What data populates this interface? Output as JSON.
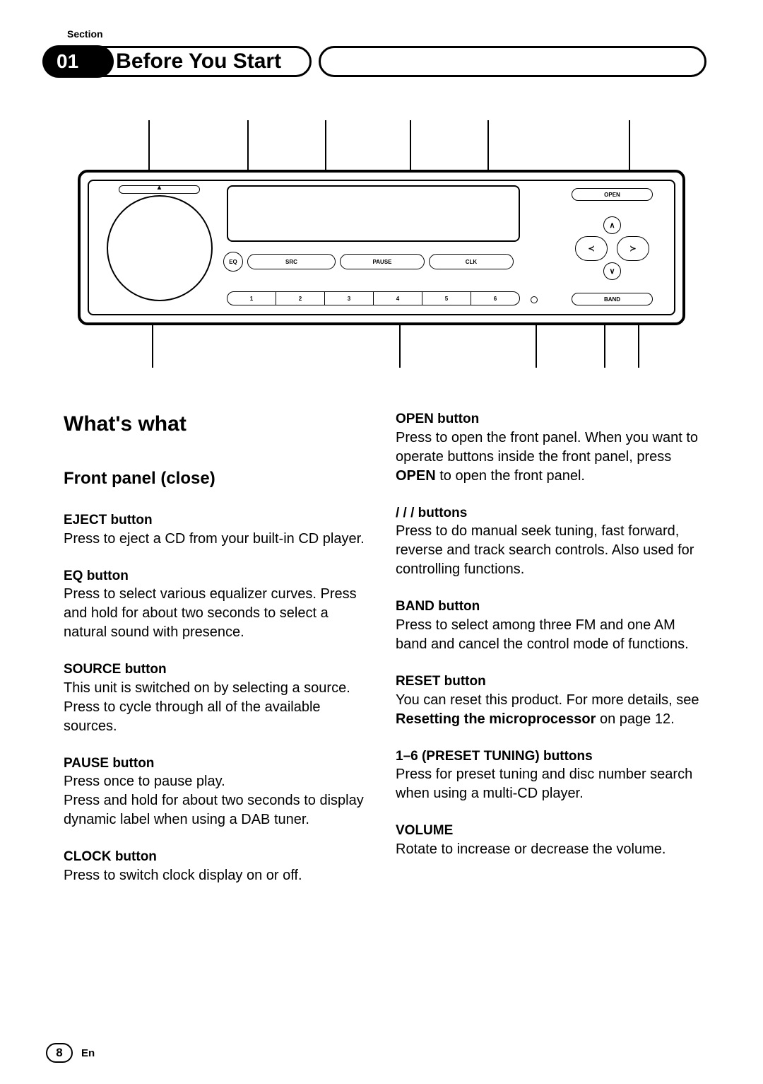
{
  "section_label": "Section",
  "header": {
    "num": "01",
    "title": "Before You Start"
  },
  "diagram": {
    "btn_eq": "EQ",
    "btn_src": "SRC",
    "btn_pause": "PAUSE",
    "btn_clk": "CLK",
    "presets": [
      "1",
      "2",
      "3",
      "4",
      "5",
      "6"
    ],
    "open": "OPEN",
    "band": "BAND",
    "dpad": {
      "up": "∧",
      "down": "∨",
      "left": "≺",
      "right": "≻"
    }
  },
  "whats_what": "What's what",
  "front_panel": "Front panel (close)",
  "items_left": [
    {
      "title": "EJECT button",
      "body": "Press to eject a CD from your built-in CD player."
    },
    {
      "title": "EQ button",
      "body": "Press to select various equalizer curves. Press and hold for about two seconds to select a natural sound with presence."
    },
    {
      "title": "SOURCE button",
      "body": "This unit is switched on by selecting a source. Press to cycle through all of the available sources."
    },
    {
      "title": "PAUSE button",
      "body": "Press once to pause play.\nPress and hold for about two seconds to display dynamic label when using a DAB tuner."
    },
    {
      "title": "CLOCK button",
      "body": "Press to switch clock display on or off."
    }
  ],
  "items_right": [
    {
      "title": "OPEN button",
      "body_parts": [
        "Press to open the front panel. When you want to operate buttons inside the front panel, press ",
        "OPEN",
        " to open the front panel."
      ]
    },
    {
      "title": " /  /  /  buttons",
      "body": "Press to do manual seek tuning, fast forward, reverse and track search controls. Also used for controlling functions."
    },
    {
      "title": "BAND button",
      "body": "Press to select among three FM and one AM band and cancel the control mode of functions."
    },
    {
      "title": "RESET button",
      "body_parts": [
        "You can reset this product. For more details, see ",
        "Resetting the microprocessor",
        " on page 12."
      ]
    },
    {
      "title": "1–6 (PRESET TUNING) buttons",
      "body": "Press for preset tuning and disc number search when using a multi-CD player."
    },
    {
      "title": "VOLUME",
      "body": "Rotate to increase or decrease the volume."
    }
  ],
  "footer": {
    "page": "8",
    "lang": "En"
  }
}
